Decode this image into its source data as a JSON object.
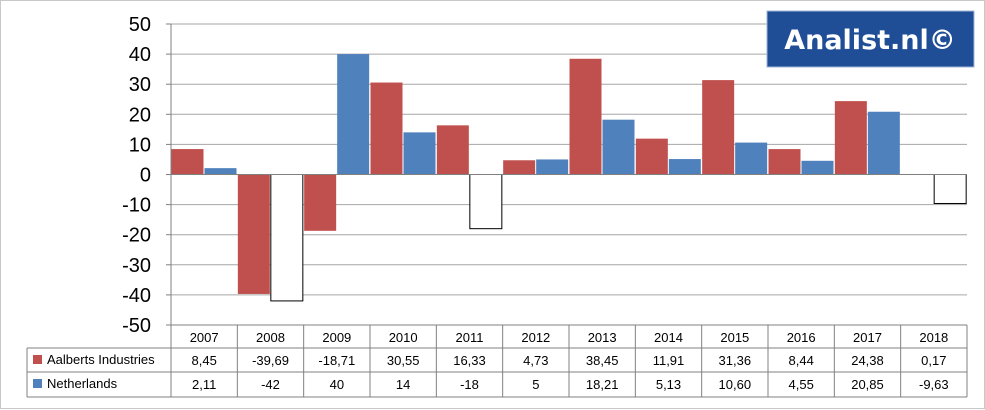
{
  "logo": {
    "text": "Analist.nl©",
    "bg": "#1f4e96"
  },
  "chart_data": {
    "type": "bar",
    "categories": [
      "2007",
      "2008",
      "2009",
      "2010",
      "2011",
      "2012",
      "2013",
      "2014",
      "2015",
      "2016",
      "2017",
      "2018"
    ],
    "series": [
      {
        "name": "Aalberts Industries",
        "color": "#c0504d",
        "values": [
          8.45,
          -39.69,
          -18.71,
          30.55,
          16.33,
          4.73,
          38.45,
          11.91,
          31.36,
          8.44,
          24.38,
          0.17
        ],
        "labels": [
          "8,45",
          "-39,69",
          "-18,71",
          "30,55",
          "16,33",
          "4,73",
          "38,45",
          "11,91",
          "31,36",
          "8,44",
          "24,38",
          "0,17"
        ]
      },
      {
        "name": "Netherlands",
        "color": "#4f81bd",
        "negative_fill": "#ffffff",
        "values": [
          2.11,
          -42,
          40,
          14,
          -18,
          5,
          18.21,
          5.13,
          10.6,
          4.55,
          20.85,
          -9.63
        ],
        "labels": [
          "2,11",
          "-42",
          "40",
          "14",
          "-18",
          "5",
          "18,21",
          "5,13",
          "10,60",
          "4,55",
          "20,85",
          "-9,63"
        ]
      }
    ],
    "ylim": [
      -50,
      50
    ],
    "yticks": [
      50,
      40,
      30,
      20,
      10,
      0,
      -10,
      -20,
      -30,
      -40,
      -50
    ],
    "grid": true,
    "legend": "data-table",
    "title": "",
    "xlabel": "",
    "ylabel": ""
  }
}
